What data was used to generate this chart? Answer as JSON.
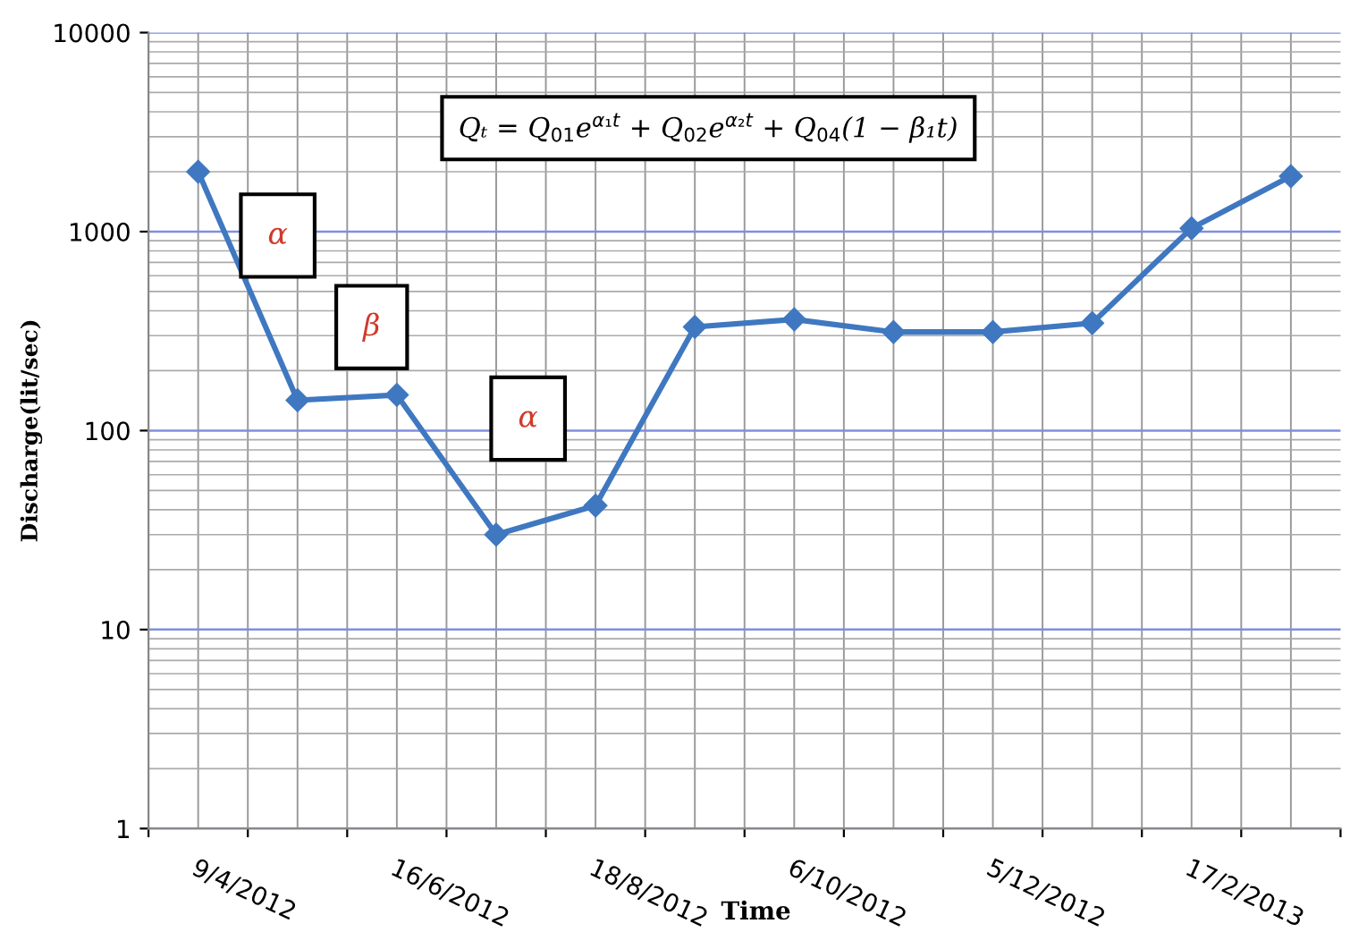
{
  "chart_data": {
    "type": "line",
    "xlabel": "Time",
    "ylabel": "Discharge(lit/sec)",
    "categories": [
      "9/4/2012",
      null,
      "16/6/2012",
      null,
      "18/8/2012",
      null,
      "6/10/2012",
      null,
      "5/12/2012",
      null,
      "17/2/2013",
      null
    ],
    "series": [
      {
        "color": "#3f78c0",
        "values": [
          2000,
          142,
          151,
          30,
          42,
          332,
          362,
          313,
          313,
          347,
          1040,
          1900
        ]
      }
    ],
    "log": "y",
    "ylim": [
      1,
      10000
    ],
    "yticks": [
      1,
      10,
      100,
      1000,
      10000
    ],
    "grid": true,
    "marker": "diamond",
    "line_style": "solid",
    "annotations": [
      "Qₜ = Q$_{01}$e$^{α₁t}$ + Q$_{02}$e$^{α₂t}$ + Q$_{04}$(1 − β₁t)",
      "α",
      "β",
      "α"
    ]
  }
}
